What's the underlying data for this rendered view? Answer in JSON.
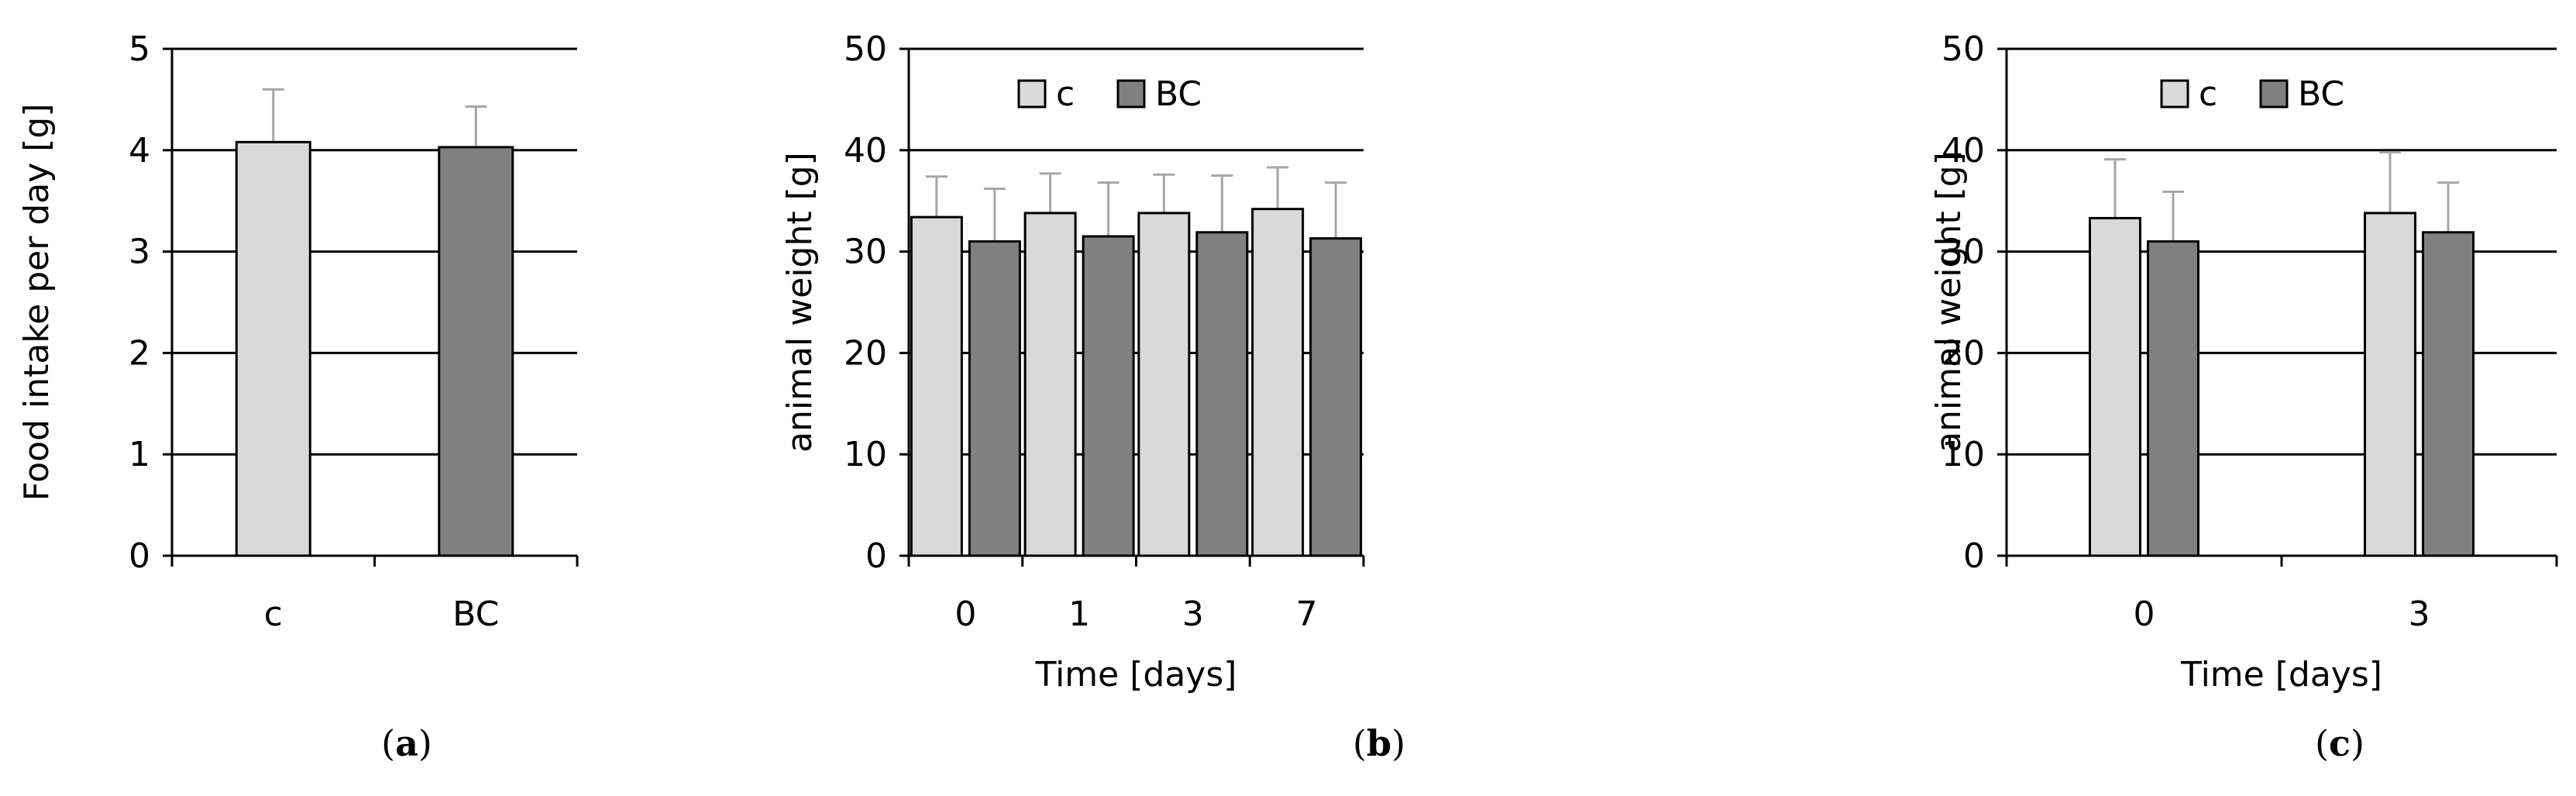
{
  "colors": {
    "c": "#d9d9d9",
    "BC": "#808080",
    "error_bar": "#a6a6a6",
    "axis": "#000000"
  },
  "chart_data": [
    {
      "type": "bar",
      "panel": "a",
      "panel_label": {
        "open": "(",
        "letter": "a",
        "close": ")"
      },
      "categories": [
        "c",
        "BC"
      ],
      "series": [
        {
          "values": [
            4.08,
            4.03
          ],
          "errors": [
            0.52,
            0.4
          ],
          "colors": [
            "#d9d9d9",
            "#808080"
          ]
        }
      ],
      "xlabel": "",
      "ylabel": "Food intake per day [g]",
      "ylim": [
        0,
        5
      ],
      "yticks": [
        0,
        1,
        2,
        3,
        4,
        5
      ],
      "grid": true,
      "legend": null
    },
    {
      "type": "bar",
      "panel": "b",
      "panel_label": {
        "open": "(",
        "letter": "b",
        "close": ")"
      },
      "categories": [
        "0",
        "1",
        "3",
        "7"
      ],
      "series": [
        {
          "name": "c",
          "values": [
            33.4,
            33.8,
            33.8,
            34.2
          ],
          "errors": [
            4.0,
            3.9,
            3.8,
            4.1
          ]
        },
        {
          "name": "BC",
          "values": [
            31.0,
            31.5,
            31.9,
            31.3
          ],
          "errors": [
            5.2,
            5.3,
            5.6,
            5.5
          ]
        }
      ],
      "xlabel": "Time [days]",
      "ylabel": "animal weight [g]",
      "ylim": [
        0,
        50
      ],
      "yticks": [
        0,
        10,
        20,
        30,
        40,
        50
      ],
      "grid": true,
      "legend": "top-left"
    },
    {
      "type": "bar",
      "panel": "c",
      "panel_label": {
        "open": "(",
        "letter": "c",
        "close": ")"
      },
      "categories": [
        "0",
        "3"
      ],
      "series": [
        {
          "name": "c",
          "values": [
            33.3,
            33.8
          ],
          "errors": [
            5.8,
            6.0
          ]
        },
        {
          "name": "BC",
          "values": [
            31.0,
            31.9
          ],
          "errors": [
            4.9,
            4.9
          ]
        }
      ],
      "xlabel": "Time [days]",
      "ylabel": "animal weight [g]",
      "ylim": [
        0,
        50
      ],
      "yticks": [
        0,
        10,
        20,
        30,
        40,
        50
      ],
      "grid": true,
      "legend": "top-left"
    }
  ]
}
